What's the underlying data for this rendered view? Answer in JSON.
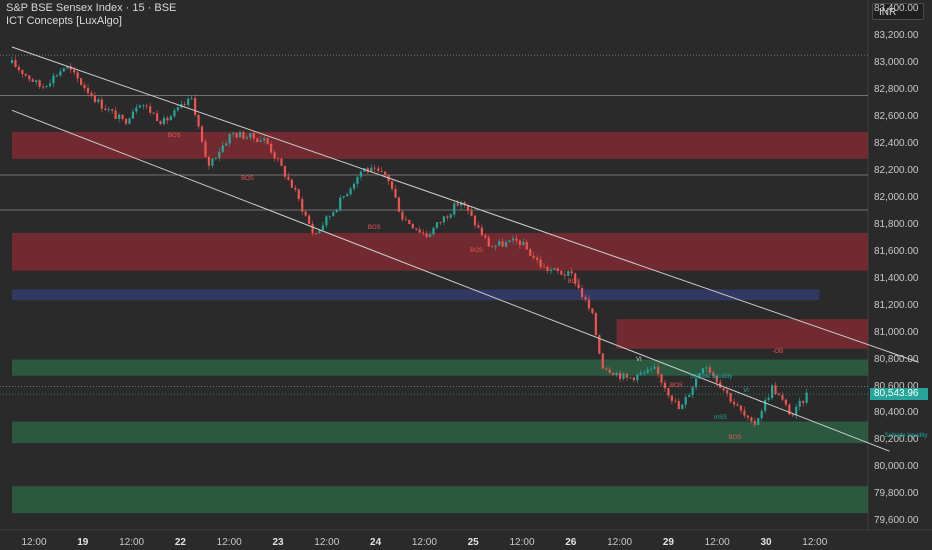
{
  "header": {
    "symbol_line": "S&P BSE Sensex Index · 15 · BSE",
    "indicator_line": "ICT Concepts [LuxAlgo]"
  },
  "currency": "INR",
  "last_price_label": "80,543.96",
  "colors": {
    "background": "#2a2a2a",
    "up_candle": "#26a69a",
    "down_candle": "#ef5350",
    "supply_zone": "#8e2c33",
    "demand_zone": "#2f6b4a",
    "blue_zone": "#34407a",
    "trendline": "#cfcfcf",
    "bos_label": "#ef5350"
  },
  "chart_data": {
    "type": "candlestick",
    "title": "S&P BSE Sensex Index · 15 · BSE",
    "y_axis": {
      "range": [
        79520,
        83380
      ],
      "ticks": [
        79600,
        79800,
        80000,
        80200,
        80400,
        80600,
        80800,
        81000,
        81200,
        81400,
        81600,
        81800,
        82000,
        82200,
        82400,
        82600,
        82800,
        83000,
        83200,
        83400
      ],
      "tick_labels": [
        "79,600.00",
        "79,800.00",
        "80,000.00",
        "80,200.00",
        "80,400.00",
        "80,600.00",
        "80,800.00",
        "81,000.00",
        "81,200.00",
        "81,400.00",
        "81,600.00",
        "81,800.00",
        "82,000.00",
        "82,200.00",
        "82,400.00",
        "82,600.00",
        "82,800.00",
        "83,000.00",
        "83,200.00",
        "83,400.00"
      ]
    },
    "x_axis": {
      "ticks": [
        "12:00",
        "19",
        "12:00",
        "22",
        "12:00",
        "23",
        "12:00",
        "24",
        "12:00",
        "25",
        "12:00",
        "26",
        "12:00",
        "29",
        "12:00",
        "30",
        "12:00"
      ],
      "day_ticks": [
        "19",
        "22",
        "23",
        "24",
        "25",
        "26",
        "29",
        "30"
      ]
    },
    "grid": false,
    "last_price": 80543.96,
    "price_path": [
      {
        "t": 0.0,
        "p": 83000
      },
      {
        "t": 0.3,
        "p": 82820
      },
      {
        "t": 0.55,
        "p": 82980
      },
      {
        "t": 0.9,
        "p": 82700
      },
      {
        "t": 1.15,
        "p": 82560
      },
      {
        "t": 1.3,
        "p": 82720
      },
      {
        "t": 1.55,
        "p": 82560
      },
      {
        "t": 1.85,
        "p": 82740
      },
      {
        "t": 2.0,
        "p": 82230
      },
      {
        "t": 2.25,
        "p": 82480
      },
      {
        "t": 2.6,
        "p": 82430
      },
      {
        "t": 2.9,
        "p": 82050
      },
      {
        "t": 3.1,
        "p": 81720
      },
      {
        "t": 3.35,
        "p": 81960
      },
      {
        "t": 3.6,
        "p": 82220
      },
      {
        "t": 3.85,
        "p": 82160
      },
      {
        "t": 4.0,
        "p": 81860
      },
      {
        "t": 4.25,
        "p": 81720
      },
      {
        "t": 4.6,
        "p": 81980
      },
      {
        "t": 4.9,
        "p": 81640
      },
      {
        "t": 5.2,
        "p": 81680
      },
      {
        "t": 5.45,
        "p": 81480
      },
      {
        "t": 5.75,
        "p": 81420
      },
      {
        "t": 5.95,
        "p": 81130
      },
      {
        "t": 6.05,
        "p": 80760
      },
      {
        "t": 6.3,
        "p": 80660
      },
      {
        "t": 6.6,
        "p": 80720
      },
      {
        "t": 6.85,
        "p": 80420
      },
      {
        "t": 7.1,
        "p": 80780
      },
      {
        "t": 7.4,
        "p": 80480
      },
      {
        "t": 7.6,
        "p": 80300
      },
      {
        "t": 7.8,
        "p": 80600
      },
      {
        "t": 8.0,
        "p": 80380
      },
      {
        "t": 8.15,
        "p": 80540
      }
    ],
    "zones": [
      {
        "name": "supply-zone",
        "low": 82290,
        "high": 82490,
        "t_start": 0,
        "t_end": 8.8
      },
      {
        "name": "supply-zone",
        "low": 81460,
        "high": 81740,
        "t_start": 0,
        "t_end": 8.8
      },
      {
        "name": "blue-zone",
        "low": 81240,
        "high": 81320,
        "t_start": 0,
        "t_end": 8.28
      },
      {
        "name": "supply-zone",
        "low": 80880,
        "high": 81100,
        "t_start": 6.2,
        "t_end": 8.8
      },
      {
        "name": "demand-zone",
        "low": 80680,
        "high": 80800,
        "t_start": 0,
        "t_end": 8.8
      },
      {
        "name": "demand-zone",
        "low": 80180,
        "high": 80340,
        "t_start": 0,
        "t_end": 8.8
      },
      {
        "name": "demand-zone",
        "low": 79660,
        "high": 79860,
        "t_start": 0,
        "t_end": 8.8
      }
    ],
    "h_lines": [
      {
        "price": 83060,
        "style": "dotted"
      },
      {
        "price": 82760,
        "style": "solid"
      },
      {
        "price": 82170,
        "style": "solid"
      },
      {
        "price": 81910,
        "style": "solid"
      },
      {
        "price": 80600,
        "style": "dotted"
      }
    ],
    "trendlines": [
      {
        "t1": 0.0,
        "p1": 83120,
        "t2": 9.3,
        "p2": 80780
      },
      {
        "t1": 0.0,
        "p1": 82650,
        "t2": 9.0,
        "p2": 80120
      }
    ],
    "annotations": [
      {
        "text": "BOS",
        "t": 1.6,
        "p": 82455,
        "color": "#ef5350"
      },
      {
        "text": "BOS",
        "t": 2.35,
        "p": 82130,
        "color": "#ef5350"
      },
      {
        "text": "BOS",
        "t": 3.65,
        "p": 81770,
        "color": "#ef5350"
      },
      {
        "text": "BOS",
        "t": 4.7,
        "p": 81600,
        "color": "#ef5350"
      },
      {
        "text": "BOS",
        "t": 5.7,
        "p": 81370,
        "color": "#ef5350"
      },
      {
        "text": "-OB",
        "t": 7.8,
        "p": 80850,
        "color": "#ef5350"
      },
      {
        "text": "VI",
        "t": 6.4,
        "p": 80790,
        "color": "#cfcfcf"
      },
      {
        "text": "VI",
        "t": 7.5,
        "p": 80560,
        "color": "#26a69a"
      },
      {
        "text": "Sellside liquidity",
        "t": 6.95,
        "p": 80660,
        "color": "#26a69a"
      },
      {
        "text": "BOS",
        "t": 6.75,
        "p": 80600,
        "color": "#ef5350"
      },
      {
        "text": "BOS",
        "t": 7.35,
        "p": 80210,
        "color": "#ef5350"
      },
      {
        "text": "Sellside liquidity",
        "t": 8.95,
        "p": 80225,
        "color": "#26a69a"
      },
      {
        "text": "mSS",
        "t": 7.2,
        "p": 80360,
        "color": "#26a69a"
      }
    ]
  }
}
